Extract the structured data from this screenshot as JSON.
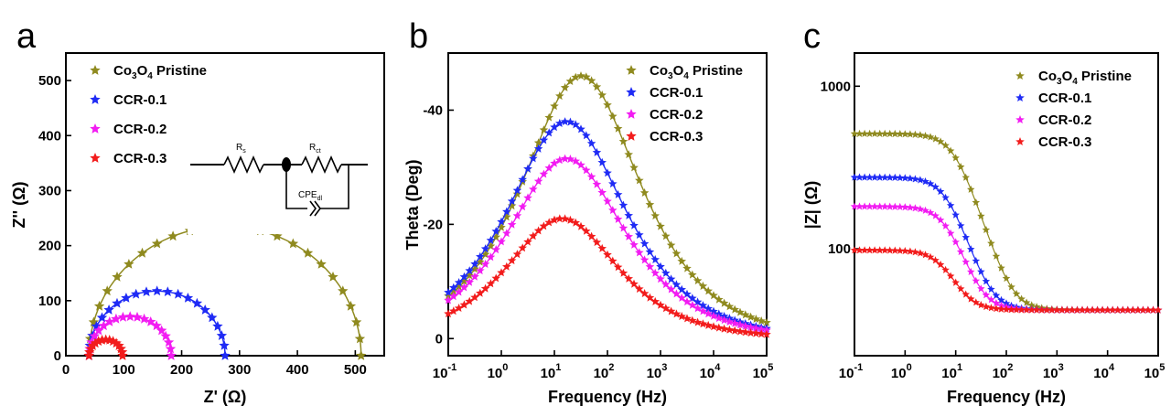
{
  "figure": {
    "panels": [
      "a",
      "b",
      "c"
    ]
  },
  "legend_entries": [
    {
      "base": "Co",
      "sub1": "3",
      "mid": "O",
      "sub2": "4",
      "rest": " Pristine",
      "color": "#8f8a1f"
    },
    {
      "text": "CCR-0.1",
      "color": "#1f2bf5"
    },
    {
      "text": "CCR-0.2",
      "color": "#f21cf2"
    },
    {
      "text": "CCR-0.3",
      "color": "#f21c1c"
    }
  ],
  "inset": {
    "rs": "R",
    "rs_sub": "s",
    "rct": "R",
    "rct_sub": "ct",
    "cpe": "CPE",
    "cpe_sub": "dl"
  },
  "chart_data": [
    {
      "type": "scatter",
      "panel": "a",
      "xlabel": "Z' (Ω)",
      "ylabel": "Z'' (Ω)",
      "xlim": [
        0,
        550
      ],
      "ylim": [
        0,
        550
      ],
      "xticks": [
        0,
        100,
        200,
        300,
        400,
        500
      ],
      "yticks": [
        0,
        100,
        200,
        300,
        400,
        500
      ],
      "series": [
        {
          "legend": 0,
          "rs": 40,
          "rct": 470,
          "points": 25
        },
        {
          "legend": 1,
          "rs": 40,
          "rct": 235,
          "points": 21
        },
        {
          "legend": 2,
          "rs": 40,
          "rct": 142,
          "points": 19
        },
        {
          "legend": 3,
          "rs": 40,
          "rct": 58,
          "points": 15
        }
      ]
    },
    {
      "type": "line",
      "panel": "b",
      "xlabel": "Frequency (Hz)",
      "ylabel": "Theta (Deg)",
      "xscale": "log",
      "xlim": [
        0.1,
        100000
      ],
      "ylim": [
        -50,
        3
      ],
      "y_inverted": true,
      "xticks": [
        0.1,
        1,
        10,
        100,
        1000,
        10000,
        100000
      ],
      "xtick_labels": [
        [
          "10",
          "-1"
        ],
        [
          "10",
          "0"
        ],
        [
          "10",
          "1"
        ],
        [
          "10",
          "2"
        ],
        [
          "10",
          "3"
        ],
        [
          "10",
          "4"
        ],
        [
          "10",
          "5"
        ]
      ],
      "yticks": [
        0,
        -20,
        -40
      ],
      "series": [
        {
          "legend": 0,
          "peak_freq": 32,
          "peak_theta": -46,
          "width": 1.0
        },
        {
          "legend": 1,
          "peak_freq": 17,
          "peak_theta": -38,
          "width": 1.0
        },
        {
          "legend": 2,
          "peak_freq": 17,
          "peak_theta": -31.5,
          "width": 1.0
        },
        {
          "legend": 3,
          "peak_freq": 14,
          "peak_theta": -21,
          "width": 0.95
        }
      ]
    },
    {
      "type": "line",
      "panel": "c",
      "xlabel": "Frequency (Hz)",
      "ylabel": "|Z| (Ω)",
      "xscale": "log",
      "yscale": "log",
      "xlim": [
        0.1,
        100000
      ],
      "ylim": [
        22,
        1600
      ],
      "xticks": [
        0.1,
        1,
        10,
        100,
        1000,
        10000,
        100000
      ],
      "xtick_labels": [
        [
          "10",
          "-1"
        ],
        [
          "10",
          "0"
        ],
        [
          "10",
          "1"
        ],
        [
          "10",
          "2"
        ],
        [
          "10",
          "3"
        ],
        [
          "10",
          "4"
        ],
        [
          "10",
          "5"
        ]
      ],
      "yticks": [
        100,
        1000
      ],
      "series": [
        {
          "legend": 0,
          "z_low": 510,
          "z_high": 42,
          "corner_freq": 10
        },
        {
          "legend": 1,
          "z_low": 275,
          "z_high": 42,
          "corner_freq": 7
        },
        {
          "legend": 2,
          "z_low": 182,
          "z_high": 42,
          "corner_freq": 7
        },
        {
          "legend": 3,
          "z_low": 98,
          "z_high": 42,
          "corner_freq": 6
        }
      ]
    }
  ]
}
